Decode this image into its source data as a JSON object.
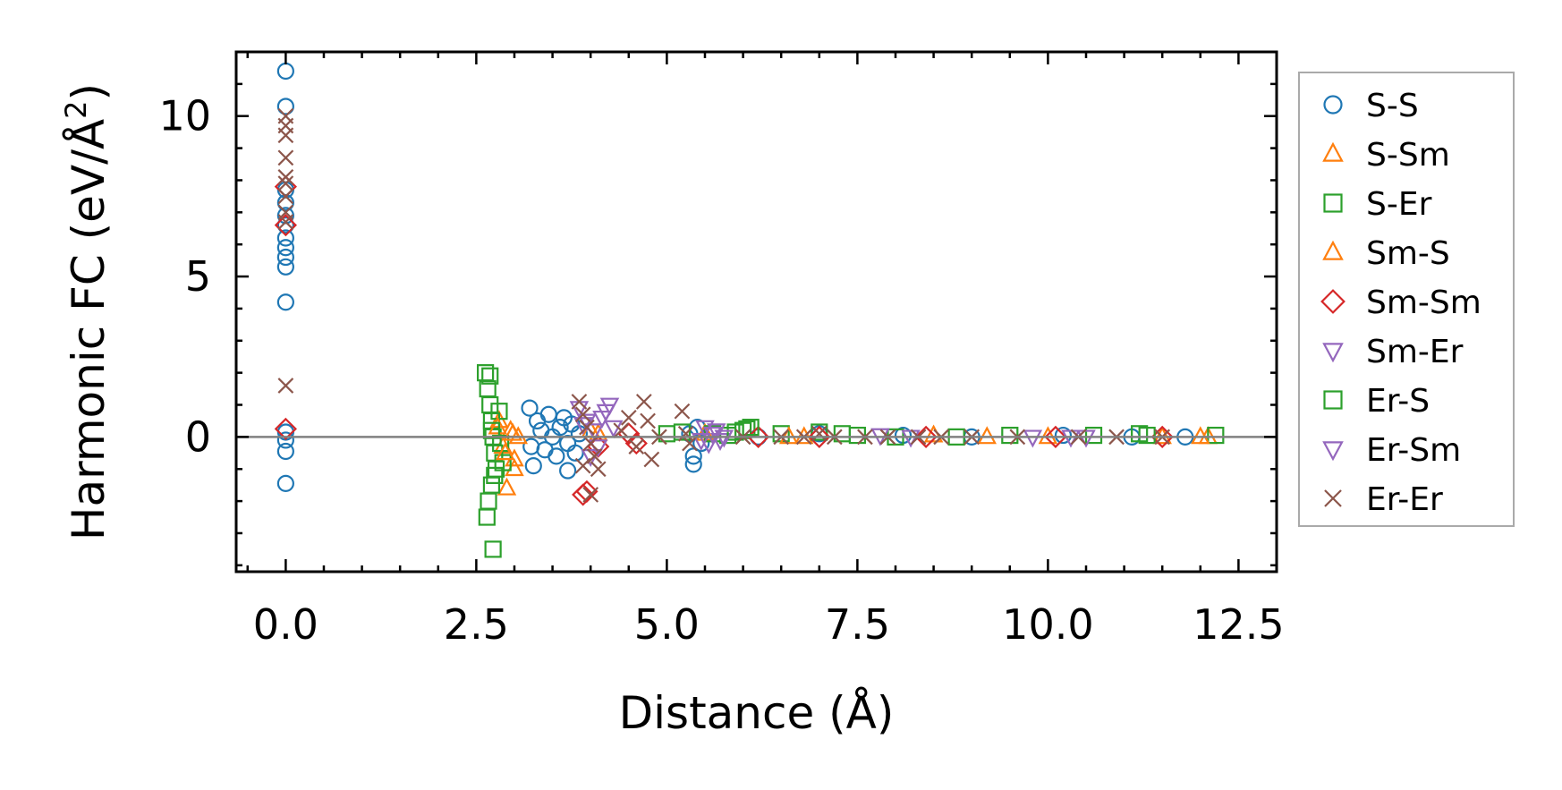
{
  "chart_data": {
    "type": "scatter",
    "xlabel": "Distance (Å)",
    "ylabel_main": "Harmonic FC (eV/Å",
    "ylabel_sup": "2",
    "ylabel_end": ")",
    "xlim": [
      -0.65,
      13.0
    ],
    "ylim": [
      -4.2,
      12.0
    ],
    "xticks": [
      0.0,
      2.5,
      5.0,
      7.5,
      10.0,
      12.5
    ],
    "xtick_labels": [
      "0.0",
      "2.5",
      "5.0",
      "7.5",
      "10.0",
      "12.5"
    ],
    "yticks": [
      0,
      5,
      10
    ],
    "ytick_labels": [
      "0",
      "5",
      "10"
    ],
    "grid": false,
    "zero_line": true,
    "legend_position": "outside-right",
    "series": [
      {
        "name": "S-S",
        "marker": "circle",
        "color": "#1f77b4",
        "points": [
          [
            0.0,
            11.4
          ],
          [
            0.0,
            10.3
          ],
          [
            0.0,
            7.7
          ],
          [
            0.0,
            7.3
          ],
          [
            0.0,
            6.9
          ],
          [
            0.0,
            6.6
          ],
          [
            0.0,
            6.2
          ],
          [
            0.0,
            5.9
          ],
          [
            0.0,
            5.6
          ],
          [
            0.0,
            5.3
          ],
          [
            0.0,
            4.2
          ],
          [
            0.0,
            0.15
          ],
          [
            0.0,
            -0.1
          ],
          [
            0.0,
            -0.45
          ],
          [
            0.0,
            -1.45
          ],
          [
            3.2,
            0.9
          ],
          [
            3.22,
            -0.3
          ],
          [
            3.25,
            -0.9
          ],
          [
            3.3,
            0.5
          ],
          [
            3.35,
            0.2
          ],
          [
            3.4,
            -0.4
          ],
          [
            3.45,
            0.7
          ],
          [
            3.5,
            0.0
          ],
          [
            3.55,
            -0.6
          ],
          [
            3.6,
            0.3
          ],
          [
            3.65,
            0.6
          ],
          [
            3.7,
            -0.2
          ],
          [
            3.7,
            -1.05
          ],
          [
            3.75,
            0.4
          ],
          [
            3.8,
            -0.5
          ],
          [
            3.85,
            0.1
          ],
          [
            5.3,
            0.1
          ],
          [
            5.35,
            -0.6
          ],
          [
            5.35,
            -0.85
          ],
          [
            5.4,
            0.3
          ],
          [
            5.45,
            -0.2
          ],
          [
            6.2,
            0.0
          ],
          [
            7.0,
            0.1
          ],
          [
            8.1,
            0.05
          ],
          [
            9.0,
            0.0
          ],
          [
            10.2,
            0.05
          ],
          [
            11.1,
            0.0
          ],
          [
            11.8,
            0.0
          ]
        ]
      },
      {
        "name": "S-Sm",
        "marker": "triangle-up",
        "color": "#ff7f0e",
        "points": [
          [
            2.8,
            0.5
          ],
          [
            2.85,
            -0.3
          ],
          [
            2.9,
            -1.6
          ],
          [
            2.95,
            0.2
          ],
          [
            3.0,
            -0.7
          ],
          [
            3.05,
            0.0
          ],
          [
            3.0,
            -1.0
          ],
          [
            4.0,
            0.2
          ],
          [
            5.5,
            0.1
          ],
          [
            6.8,
            0.0
          ],
          [
            8.5,
            0.05
          ],
          [
            10.0,
            0.0
          ],
          [
            11.5,
            0.0
          ],
          [
            12.1,
            0.0
          ]
        ]
      },
      {
        "name": "S-Er",
        "marker": "square",
        "color": "#2ca02c",
        "points": [
          [
            2.62,
            2.0
          ],
          [
            2.65,
            1.5
          ],
          [
            2.68,
            1.0
          ],
          [
            2.7,
            0.5
          ],
          [
            2.72,
            0.0
          ],
          [
            2.74,
            -0.5
          ],
          [
            2.76,
            -1.0
          ],
          [
            2.7,
            -1.5
          ],
          [
            2.66,
            -2.0
          ],
          [
            2.64,
            -2.5
          ],
          [
            2.72,
            -3.5
          ],
          [
            2.8,
            0.8
          ],
          [
            2.82,
            -0.2
          ],
          [
            2.85,
            -0.8
          ],
          [
            5.2,
            0.15
          ],
          [
            5.6,
            0.1
          ],
          [
            5.8,
            0.05
          ],
          [
            6.0,
            0.2
          ],
          [
            6.05,
            0.25
          ],
          [
            6.5,
            0.1
          ],
          [
            7.0,
            0.15
          ],
          [
            7.5,
            0.05
          ],
          [
            8.0,
            0.0
          ],
          [
            9.5,
            0.05
          ],
          [
            10.6,
            0.05
          ],
          [
            11.2,
            0.1
          ],
          [
            12.2,
            0.05
          ]
        ]
      },
      {
        "name": "Sm-S",
        "marker": "triangle-up",
        "color": "#ff7f0e",
        "points": [
          [
            2.78,
            0.3
          ],
          [
            2.88,
            -0.5
          ],
          [
            2.98,
            0.1
          ],
          [
            4.1,
            0.1
          ],
          [
            6.6,
            0.0
          ],
          [
            9.2,
            0.0
          ],
          [
            12.0,
            0.0
          ]
        ]
      },
      {
        "name": "Sm-Sm",
        "marker": "diamond",
        "color": "#d62728",
        "points": [
          [
            0.0,
            7.8
          ],
          [
            0.0,
            6.6
          ],
          [
            0.0,
            0.25
          ],
          [
            3.9,
            -1.8
          ],
          [
            3.95,
            -1.7
          ],
          [
            4.1,
            -0.3
          ],
          [
            4.5,
            0.1
          ],
          [
            4.6,
            -0.2
          ],
          [
            6.2,
            0.0
          ],
          [
            7.0,
            0.0
          ],
          [
            8.4,
            0.0
          ],
          [
            10.1,
            0.0
          ],
          [
            11.5,
            0.0
          ]
        ]
      },
      {
        "name": "Sm-Er",
        "marker": "triangle-down",
        "color": "#9467bd",
        "points": [
          [
            3.85,
            0.9
          ],
          [
            3.95,
            0.5
          ],
          [
            4.05,
            0.2
          ],
          [
            4.1,
            -0.3
          ],
          [
            4.2,
            0.8
          ],
          [
            4.25,
            1.0
          ],
          [
            4.3,
            0.3
          ],
          [
            5.5,
            0.3
          ],
          [
            5.55,
            -0.2
          ],
          [
            5.6,
            0.1
          ],
          [
            5.65,
            0.2
          ],
          [
            5.7,
            -0.1
          ],
          [
            7.8,
            0.05
          ],
          [
            9.8,
            0.0
          ],
          [
            10.3,
            0.0
          ]
        ]
      },
      {
        "name": "Er-S",
        "marker": "square",
        "color": "#2ca02c",
        "points": [
          [
            2.68,
            1.9
          ],
          [
            2.7,
            0.2
          ],
          [
            2.74,
            -1.2
          ],
          [
            5.0,
            0.1
          ],
          [
            5.9,
            0.15
          ],
          [
            6.1,
            0.3
          ],
          [
            7.3,
            0.1
          ],
          [
            8.8,
            0.0
          ],
          [
            11.3,
            0.05
          ]
        ]
      },
      {
        "name": "Er-Sm",
        "marker": "triangle-down",
        "color": "#9467bd",
        "points": [
          [
            3.9,
            0.4
          ],
          [
            4.0,
            -0.6
          ],
          [
            4.15,
            0.6
          ],
          [
            5.45,
            -0.1
          ],
          [
            5.75,
            0.0
          ],
          [
            8.2,
            0.0
          ],
          [
            10.5,
            0.0
          ]
        ]
      },
      {
        "name": "Er-Er",
        "marker": "cross",
        "color": "#8c564b",
        "points": [
          [
            0.0,
            10.0
          ],
          [
            0.0,
            9.7
          ],
          [
            0.0,
            9.4
          ],
          [
            0.0,
            8.7
          ],
          [
            0.0,
            8.1
          ],
          [
            0.0,
            7.9
          ],
          [
            0.0,
            7.5
          ],
          [
            0.0,
            7.0
          ],
          [
            0.0,
            6.7
          ],
          [
            0.0,
            1.6
          ],
          [
            3.85,
            1.1
          ],
          [
            3.9,
            0.7
          ],
          [
            3.95,
            0.3
          ],
          [
            4.0,
            -0.2
          ],
          [
            4.05,
            -0.6
          ],
          [
            4.1,
            -1.0
          ],
          [
            3.9,
            -0.9
          ],
          [
            4.0,
            -1.8
          ],
          [
            4.4,
            0.2
          ],
          [
            4.5,
            0.6
          ],
          [
            4.6,
            -0.3
          ],
          [
            4.7,
            1.1
          ],
          [
            4.75,
            0.5
          ],
          [
            4.8,
            -0.7
          ],
          [
            4.9,
            0.0
          ],
          [
            5.2,
            0.8
          ],
          [
            5.25,
            0.1
          ],
          [
            5.3,
            -0.2
          ],
          [
            6.0,
            0.0
          ],
          [
            6.5,
            0.0
          ],
          [
            6.8,
            0.0
          ],
          [
            7.0,
            0.1
          ],
          [
            7.2,
            0.0
          ],
          [
            7.6,
            0.0
          ],
          [
            7.9,
            0.0
          ],
          [
            8.3,
            0.0
          ],
          [
            8.6,
            0.0
          ],
          [
            9.0,
            0.0
          ],
          [
            9.6,
            0.0
          ],
          [
            10.4,
            0.0
          ],
          [
            10.9,
            0.0
          ],
          [
            11.5,
            0.0
          ]
        ]
      }
    ]
  }
}
